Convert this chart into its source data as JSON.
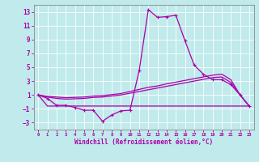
{
  "background_color": "#c0eaec",
  "grid_color": "#c8d8da",
  "line_color": "#aa00aa",
  "xlabel": "Windchill (Refroidissement éolien,°C)",
  "x": [
    0,
    1,
    2,
    3,
    4,
    5,
    6,
    7,
    8,
    9,
    10,
    11,
    12,
    13,
    14,
    15,
    16,
    17,
    18,
    19,
    20,
    21,
    22,
    23
  ],
  "main_line": [
    1.0,
    0.5,
    -0.5,
    -0.5,
    -0.8,
    -1.2,
    -1.2,
    -2.8,
    -1.9,
    -1.3,
    -1.2,
    4.5,
    13.3,
    12.2,
    12.3,
    12.5,
    8.8,
    5.3,
    4.0,
    3.2,
    3.2,
    2.5,
    1.0,
    -0.6
  ],
  "diag_high": [
    1.0,
    0.8,
    0.7,
    0.6,
    0.65,
    0.7,
    0.85,
    0.9,
    1.05,
    1.2,
    1.5,
    1.8,
    2.1,
    2.3,
    2.6,
    2.85,
    3.1,
    3.35,
    3.6,
    3.85,
    4.0,
    3.2,
    1.0,
    -0.6
  ],
  "diag_mid": [
    1.0,
    0.7,
    0.5,
    0.4,
    0.45,
    0.5,
    0.65,
    0.7,
    0.85,
    1.0,
    1.25,
    1.5,
    1.75,
    2.0,
    2.25,
    2.5,
    2.75,
    3.0,
    3.25,
    3.5,
    3.6,
    2.8,
    1.0,
    -0.6
  ],
  "flat_line": [
    1.0,
    -0.6,
    -0.6,
    -0.6,
    -0.6,
    -0.6,
    -0.6,
    -0.6,
    -0.6,
    -0.6,
    -0.6,
    -0.6,
    -0.6,
    -0.6,
    -0.6,
    -0.6,
    -0.6,
    -0.6,
    -0.6,
    -0.6,
    -0.6,
    -0.6,
    -0.6,
    -0.6
  ],
  "ylim": [
    -4.0,
    14.0
  ],
  "yticks": [
    -3,
    -1,
    1,
    3,
    5,
    7,
    9,
    11,
    13
  ],
  "xticks": [
    0,
    1,
    2,
    3,
    4,
    5,
    6,
    7,
    8,
    9,
    10,
    11,
    12,
    13,
    14,
    15,
    16,
    17,
    18,
    19,
    20,
    21,
    22,
    23
  ]
}
